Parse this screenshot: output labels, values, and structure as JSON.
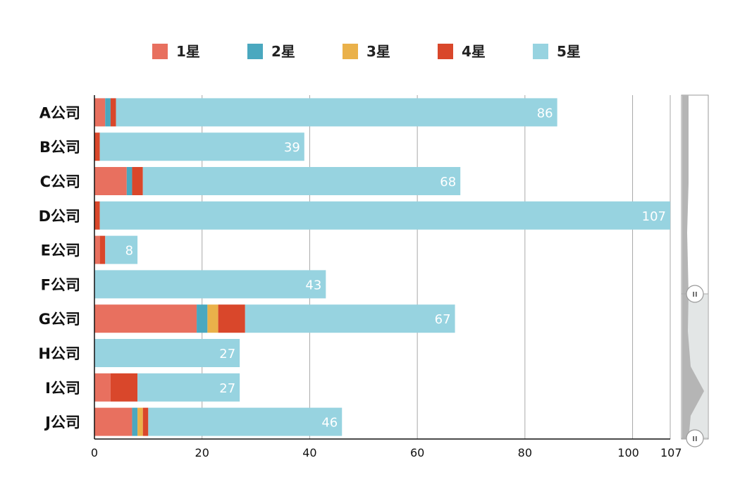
{
  "chart_data": {
    "type": "bar",
    "orientation": "horizontal",
    "stacked": true,
    "categories": [
      "A公司",
      "B公司",
      "C公司",
      "D公司",
      "E公司",
      "F公司",
      "G公司",
      "H公司",
      "I公司",
      "J公司"
    ],
    "series": [
      {
        "name": "1星",
        "color": "#E8705F",
        "values": [
          2,
          0,
          6,
          0,
          1,
          0,
          19,
          0,
          3,
          7
        ]
      },
      {
        "name": "2星",
        "color": "#4AA8BF",
        "values": [
          1,
          0,
          1,
          0,
          0,
          0,
          2,
          0,
          0,
          1
        ]
      },
      {
        "name": "3星",
        "color": "#EAB14A",
        "values": [
          0,
          0,
          0,
          0,
          0,
          0,
          2,
          0,
          0,
          1
        ]
      },
      {
        "name": "4星",
        "color": "#D9472B",
        "values": [
          1,
          1,
          2,
          1,
          1,
          0,
          5,
          0,
          5,
          1
        ]
      },
      {
        "name": "5星",
        "color": "#97D3E0",
        "values": [
          82,
          38,
          59,
          106,
          6,
          43,
          39,
          27,
          19,
          36
        ]
      }
    ],
    "data_labels": [
      "86",
      "39",
      "68",
      "107",
      "8",
      "43",
      "67",
      "27",
      "27",
      "46"
    ],
    "xlim": [
      0,
      107
    ],
    "x_ticks": [
      "0",
      "20",
      "40",
      "60",
      "80",
      "100",
      "107"
    ],
    "title": "",
    "xlabel": "",
    "ylabel": "",
    "grid": true,
    "legend_position": "top-center",
    "zoom_slider": {
      "present": true,
      "handle_glyph": "II"
    }
  }
}
